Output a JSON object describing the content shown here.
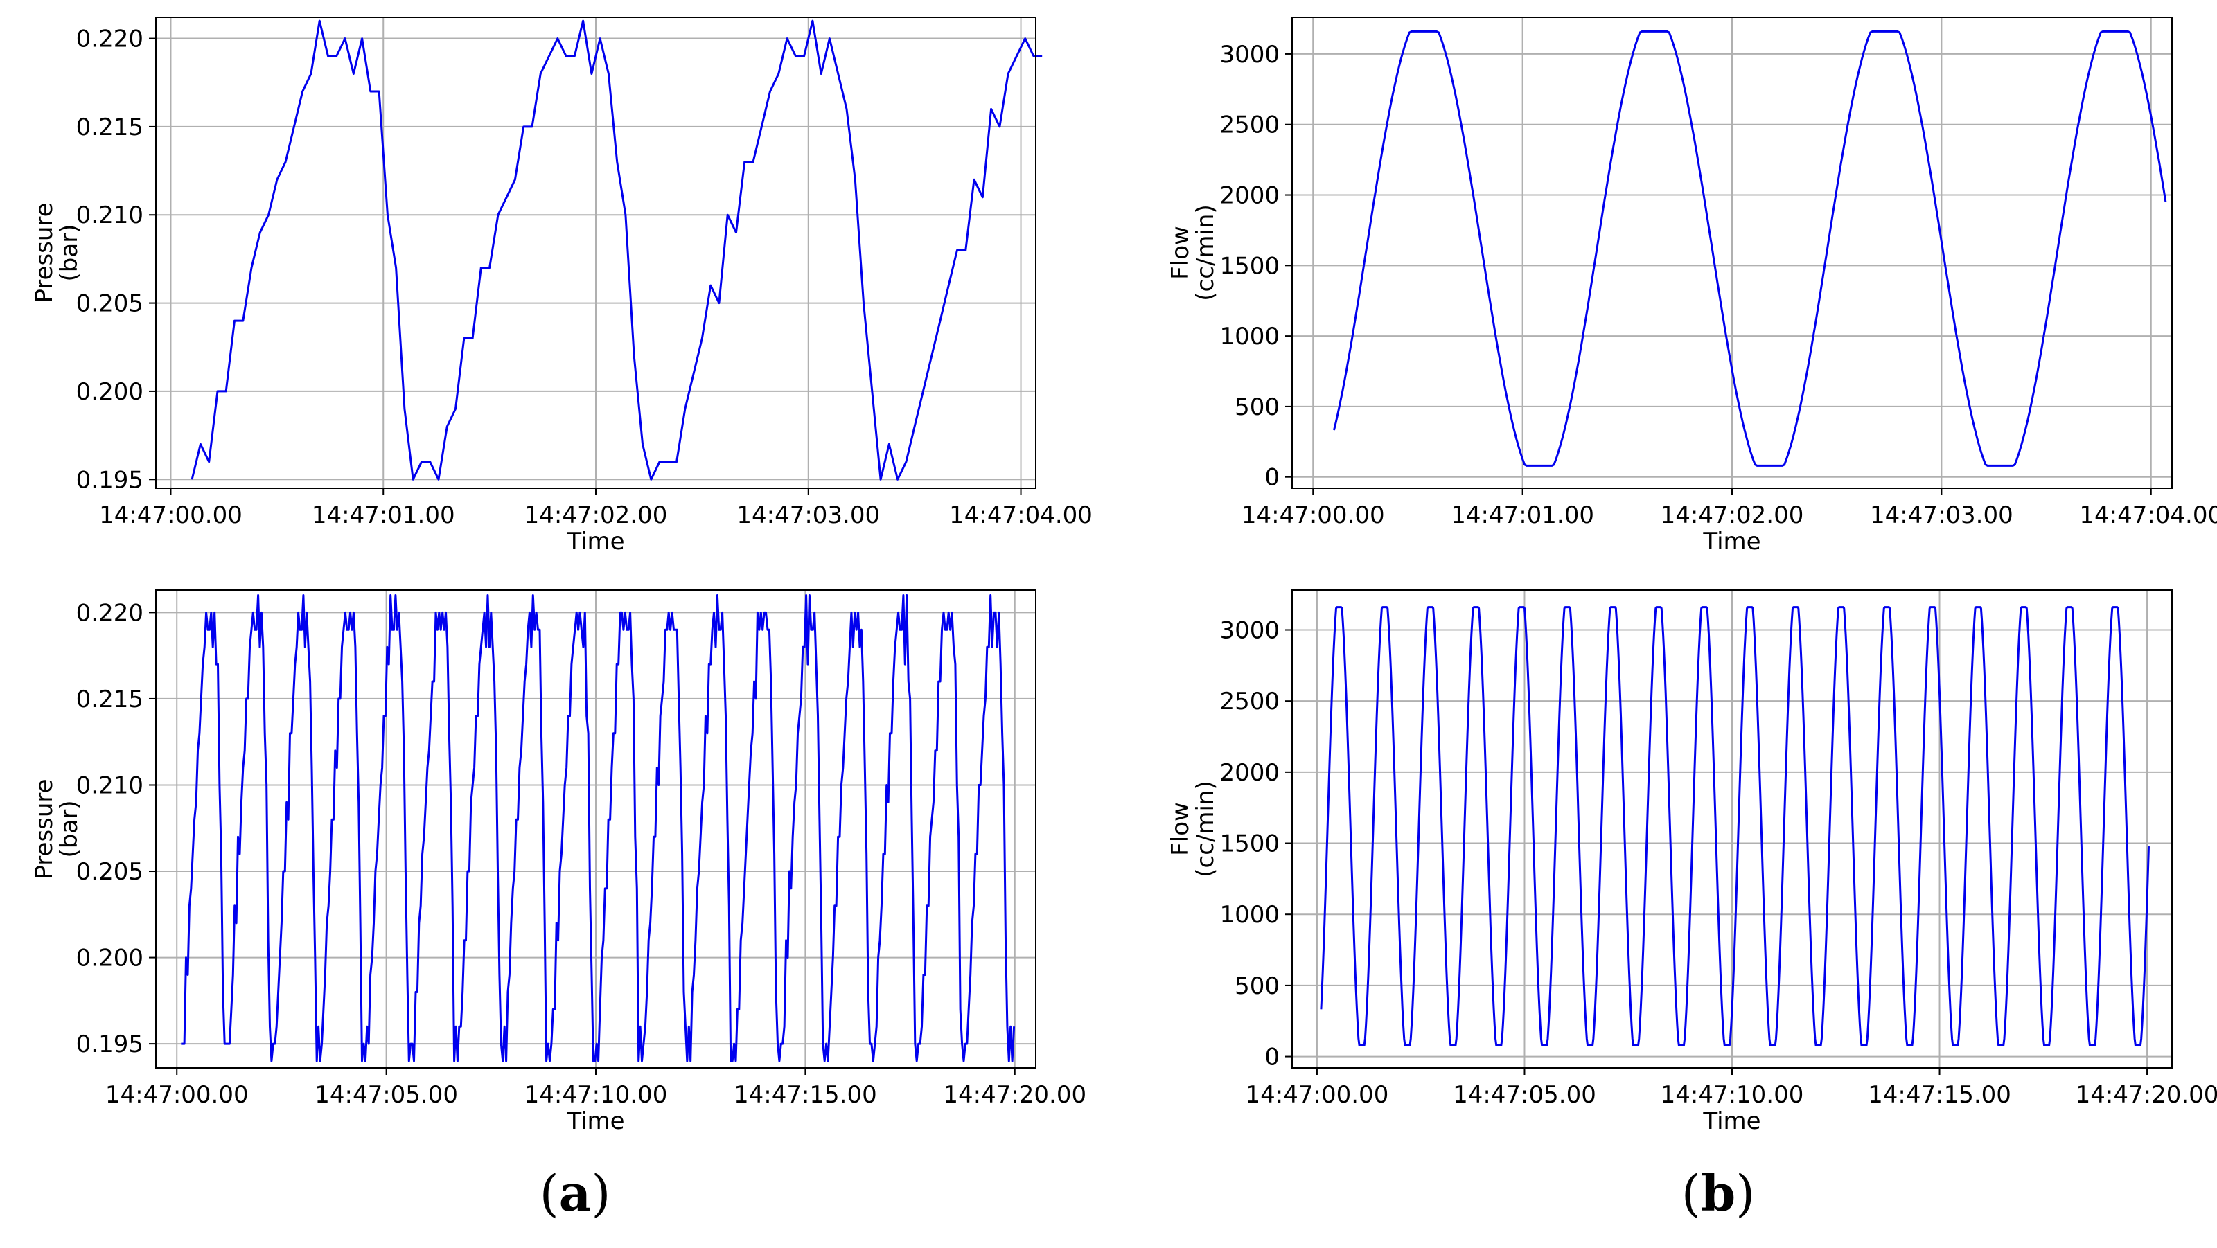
{
  "figure": {
    "caption_a": "a",
    "caption_b": "b",
    "line_color": "#0000ee"
  },
  "chart_data": [
    {
      "id": "a-top",
      "type": "line",
      "series": [
        {
          "name": "Pressure",
          "samples_per_second": 25,
          "start": 0.1,
          "end": 4.1
        }
      ],
      "xlabel": "Time",
      "ylabel": "Pressure\n(bar)",
      "xlim": [
        -0.07,
        4.07
      ],
      "ylim": [
        0.1945,
        0.2212
      ],
      "xticks": [
        0,
        1,
        2,
        3,
        4
      ],
      "xticklabels": [
        "14:47:00.00",
        "14:47:01.00",
        "14:47:02.00",
        "14:47:03.00",
        "14:47:04.00"
      ],
      "yticks": [
        0.195,
        0.2,
        0.205,
        0.21,
        0.215,
        0.22
      ],
      "yticklabels": [
        "0.195",
        "0.200",
        "0.205",
        "0.210",
        "0.215",
        "0.220"
      ],
      "period_s": 1.1,
      "value_range": [
        0.195,
        0.221
      ],
      "grid": true
    },
    {
      "id": "b-top",
      "type": "line",
      "series": [
        {
          "name": "Flow",
          "samples_per_second": 100,
          "start": 0.1,
          "end": 4.07
        }
      ],
      "xlabel": "Time",
      "ylabel": "Flow\n(cc/min)",
      "xlim": [
        -0.1,
        4.1
      ],
      "ylim": [
        -80,
        3260
      ],
      "xticks": [
        0,
        1,
        2,
        3,
        4
      ],
      "xticklabels": [
        "14:47:00.00",
        "14:47:01.00",
        "14:47:02.00",
        "14:47:03.00",
        "14:47:04.00"
      ],
      "yticks": [
        0,
        500,
        1000,
        1500,
        2000,
        2500,
        3000
      ],
      "yticklabels": [
        "0",
        "500",
        "1000",
        "1500",
        "2000",
        "2500",
        "3000"
      ],
      "period_s": 1.1,
      "value_range": [
        80,
        3160
      ],
      "grid": true
    },
    {
      "id": "a-bottom",
      "type": "line",
      "series": [
        {
          "name": "Pressure",
          "samples_per_second": 25,
          "start": 0.1,
          "end": 20.0
        }
      ],
      "xlabel": "Time",
      "ylabel": "Pressure\n(bar)",
      "xlim": [
        -0.5,
        20.5
      ],
      "ylim": [
        0.1936,
        0.2213
      ],
      "xticks": [
        0,
        5,
        10,
        15,
        20
      ],
      "xticklabels": [
        "14:47:00.00",
        "14:47:05.00",
        "14:47:10.00",
        "14:47:15.00",
        "14:47:20.00"
      ],
      "yticks": [
        0.195,
        0.2,
        0.205,
        0.21,
        0.215,
        0.22
      ],
      "yticklabels": [
        "0.195",
        "0.200",
        "0.205",
        "0.210",
        "0.215",
        "0.220"
      ],
      "period_s": 1.1,
      "value_range": [
        0.194,
        0.221
      ],
      "grid": true
    },
    {
      "id": "b-bottom",
      "type": "line",
      "series": [
        {
          "name": "Flow",
          "samples_per_second": 50,
          "start": 0.1,
          "end": 20.05
        }
      ],
      "xlabel": "Time",
      "ylabel": "Flow\n(cc/min)",
      "xlim": [
        -0.6,
        20.6
      ],
      "ylim": [
        -80,
        3280
      ],
      "xticks": [
        0,
        5,
        10,
        15,
        20
      ],
      "xticklabels": [
        "14:47:00.00",
        "14:47:05.00",
        "14:47:10.00",
        "14:47:15.00",
        "14:47:20.00"
      ],
      "yticks": [
        0,
        500,
        1000,
        1500,
        2000,
        2500,
        3000
      ],
      "yticklabels": [
        "0",
        "500",
        "1000",
        "1500",
        "2000",
        "2500",
        "3000"
      ],
      "period_s": 1.1,
      "value_range": [
        80,
        3160
      ],
      "grid": true
    }
  ]
}
